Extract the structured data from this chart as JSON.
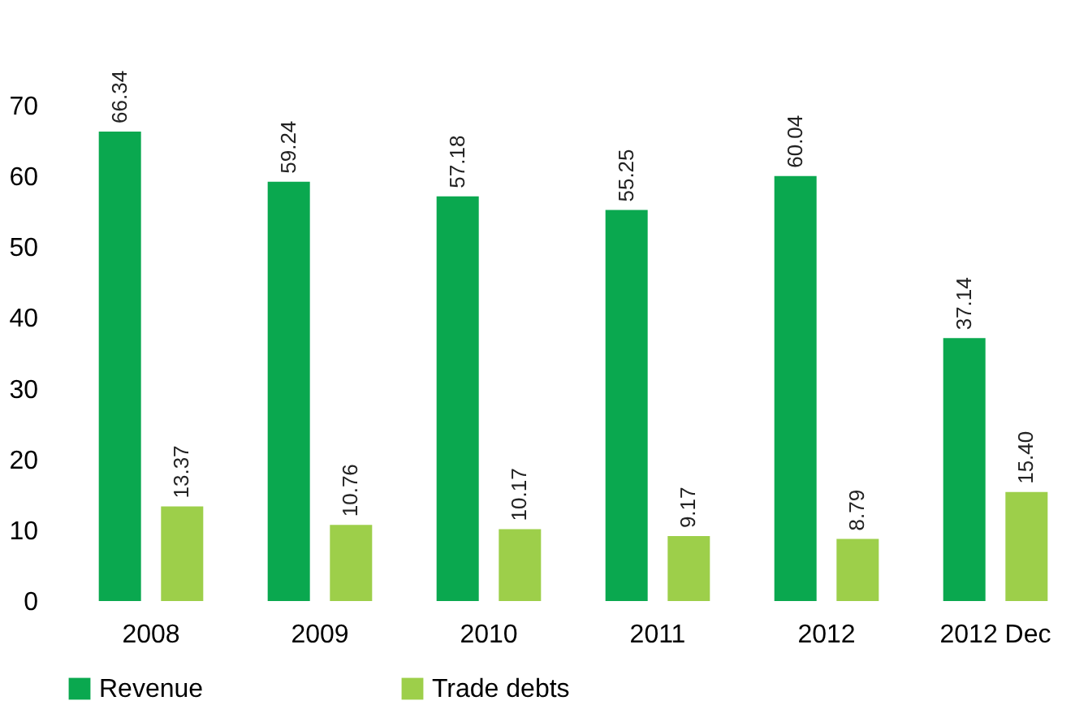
{
  "chart_data": {
    "type": "bar",
    "categories": [
      "2008",
      "2009",
      "2010",
      "2011",
      "2012",
      "2012 Dec"
    ],
    "series": [
      {
        "name": "Revenue",
        "color": "#0aa84f",
        "values": [
          66.34,
          59.24,
          57.18,
          55.25,
          60.04,
          37.14
        ],
        "value_labels": [
          "66.34",
          "59.24",
          "57.18",
          "55.25",
          "60.04",
          "37.14"
        ]
      },
      {
        "name": "Trade debts",
        "color": "#9dcf4a",
        "values": [
          13.37,
          10.76,
          10.17,
          9.17,
          8.79,
          15.4
        ],
        "value_labels": [
          "13.37",
          "10.76",
          "10.17",
          "9.17",
          "8.79",
          "15.40"
        ]
      }
    ],
    "ylim": [
      0,
      70
    ],
    "yticks": [
      0,
      10,
      20,
      30,
      40,
      50,
      60,
      70
    ],
    "grid": false,
    "legend": "bottom"
  }
}
